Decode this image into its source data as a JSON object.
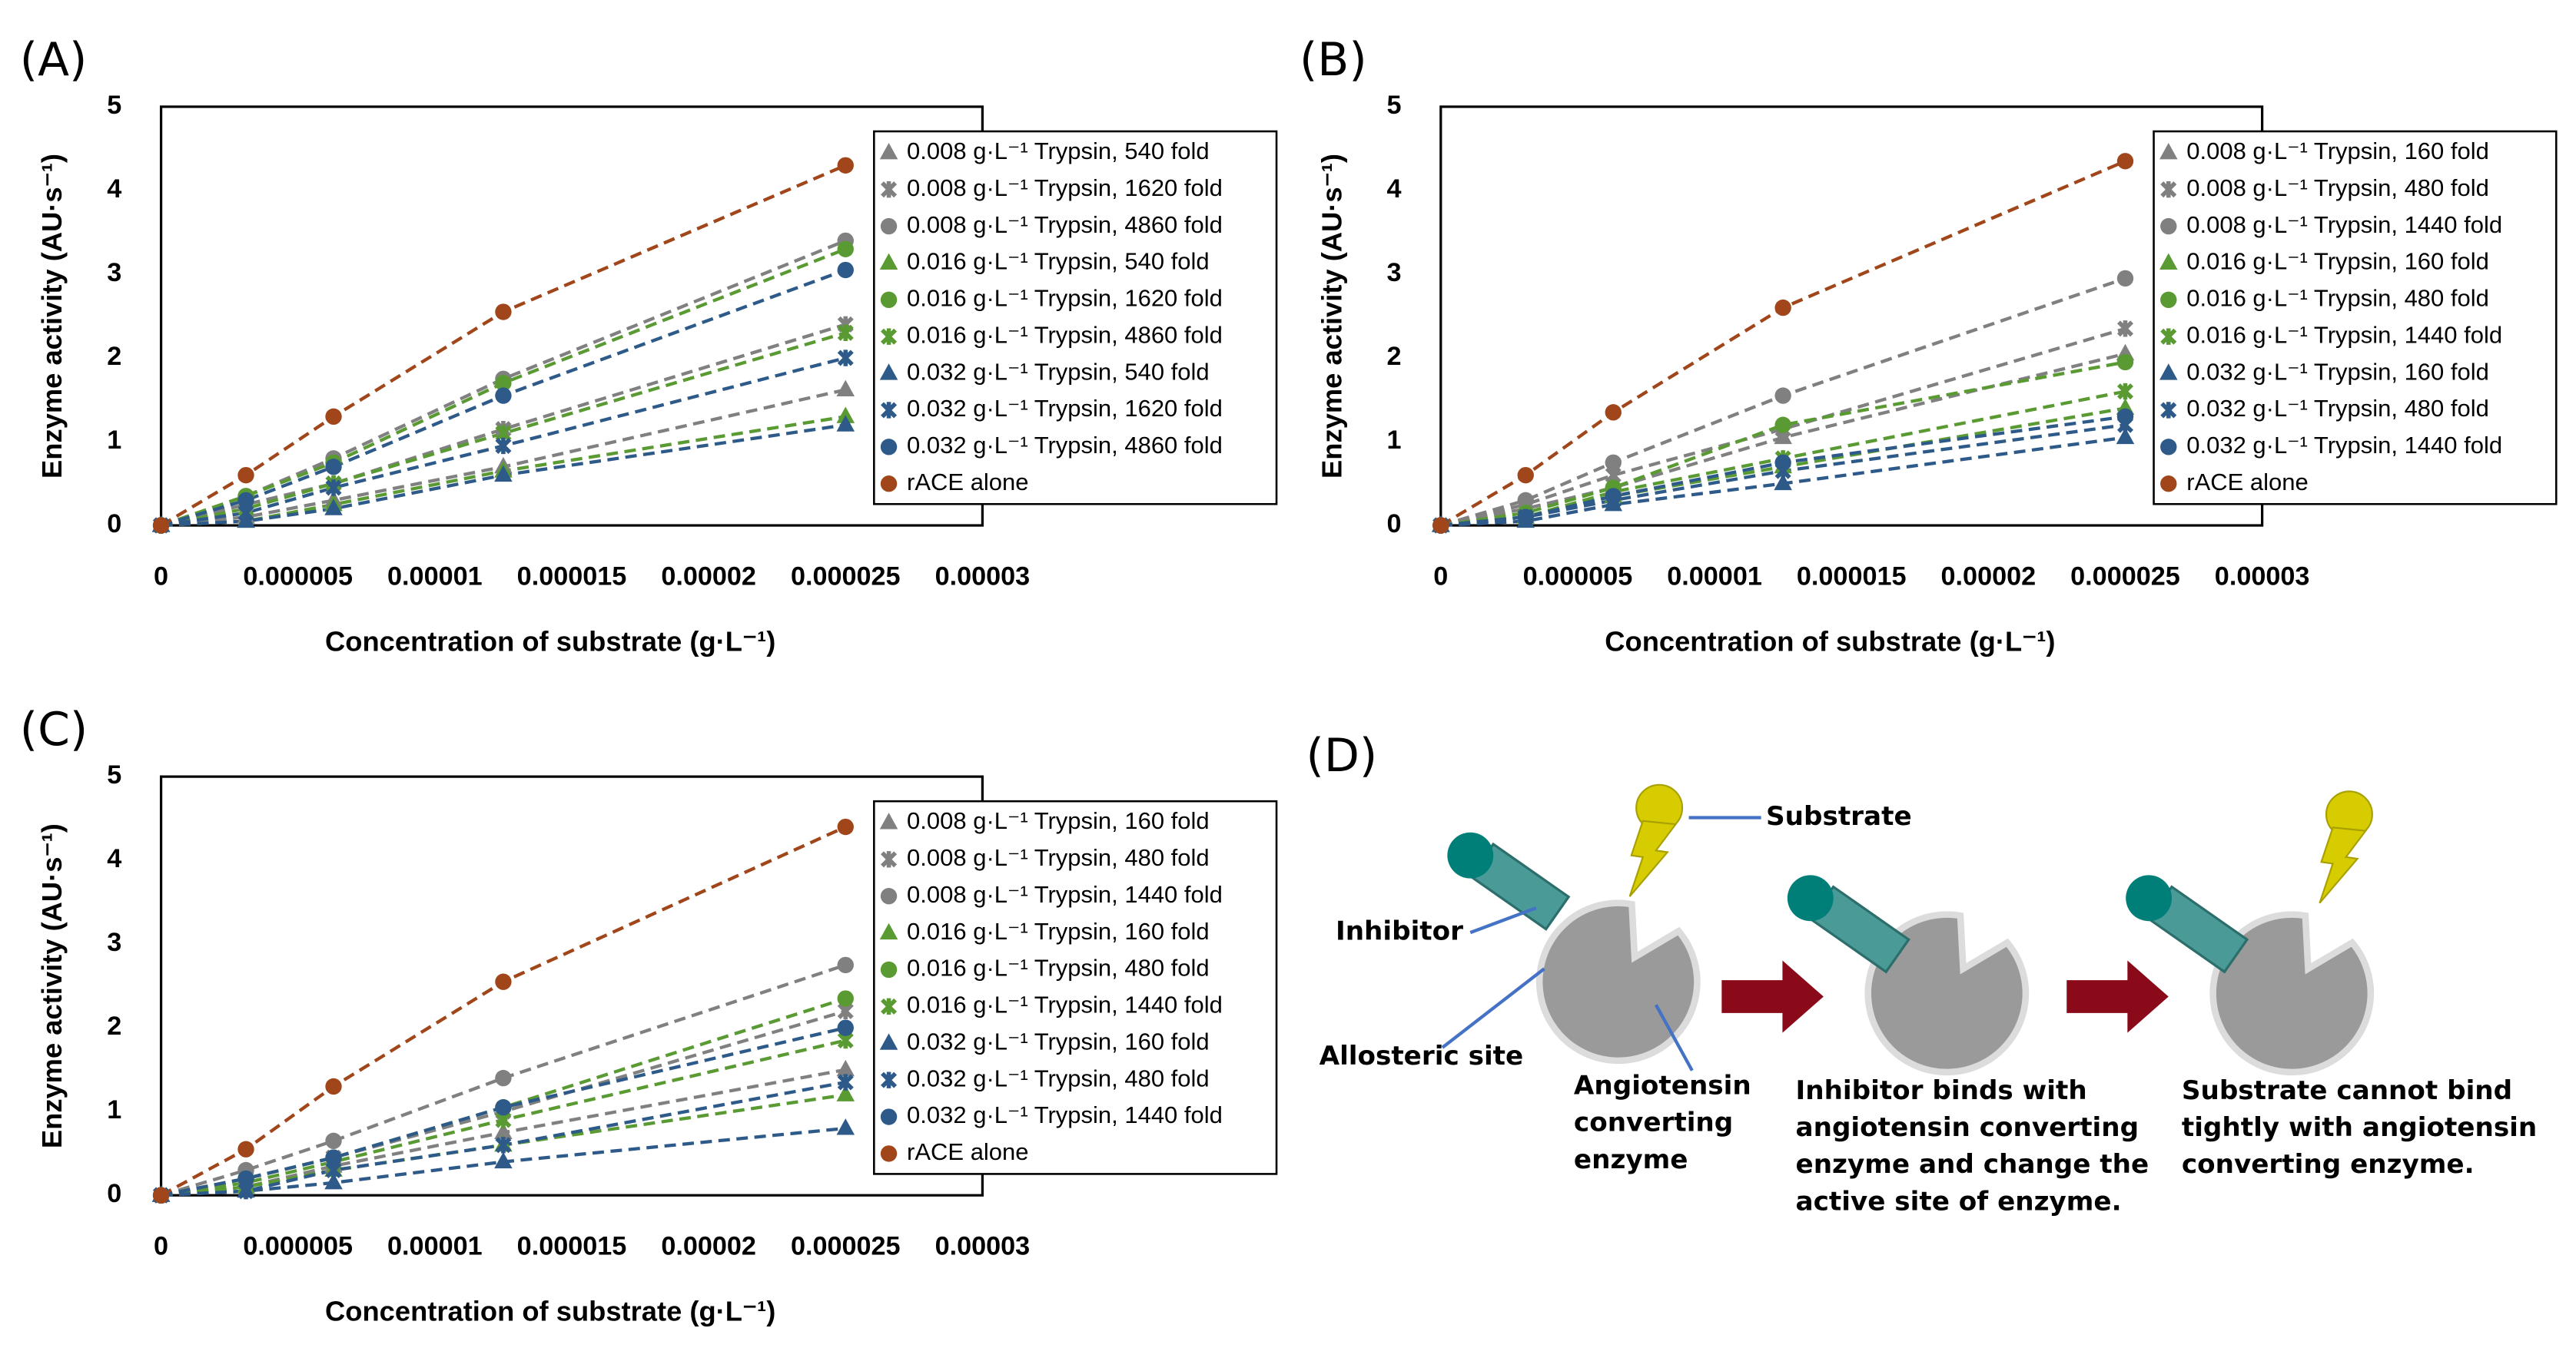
{
  "chart_data": [
    {
      "type": "scatter",
      "panel": "(A)",
      "ylabel": "Enzyme activity (AU·s⁻¹)",
      "xlabel": "Concentration of substrate (g·L⁻¹)",
      "xlim": [
        0,
        3e-05
      ],
      "ylim": [
        0,
        5
      ],
      "xticks": [
        0,
        5e-06,
        1e-05,
        1.5e-05,
        2e-05,
        2.5e-05,
        3e-05
      ],
      "yticks": [
        0,
        1,
        2,
        3,
        4,
        5
      ],
      "x": [
        0,
        3.1e-06,
        6.3e-06,
        1.25e-05,
        2.5e-05
      ],
      "series": [
        {
          "name": "0.008 g·L⁻¹ Trypsin, 540 fold",
          "color": "#808080",
          "marker": "triangle",
          "values": [
            0,
            0.1,
            0.3,
            0.7,
            1.62
          ]
        },
        {
          "name": "0.008 g·L⁻¹ Trypsin, 1620 fold",
          "color": "#808080",
          "marker": "x",
          "values": [
            0,
            0.25,
            0.5,
            1.15,
            2.4
          ]
        },
        {
          "name": "0.008 g·L⁻¹ Trypsin, 4860 fold",
          "color": "#808080",
          "marker": "circle",
          "values": [
            0,
            0.35,
            0.8,
            1.75,
            3.4
          ]
        },
        {
          "name": "0.016 g·L⁻¹ Trypsin, 540 fold",
          "color": "#5a9a32",
          "marker": "triangle",
          "values": [
            0,
            0.05,
            0.25,
            0.65,
            1.3
          ]
        },
        {
          "name": "0.016 g·L⁻¹ Trypsin, 1620 fold",
          "color": "#5a9a32",
          "marker": "circle",
          "values": [
            0,
            0.35,
            0.75,
            1.7,
            3.3
          ]
        },
        {
          "name": "0.016 g·L⁻¹ Trypsin, 4860 fold",
          "color": "#5a9a32",
          "marker": "x",
          "values": [
            0,
            0.2,
            0.5,
            1.1,
            2.3
          ]
        },
        {
          "name": "0.032 g·L⁻¹ Trypsin, 540 fold",
          "color": "#2e5a8a",
          "marker": "triangle",
          "values": [
            0,
            0.05,
            0.2,
            0.6,
            1.2
          ]
        },
        {
          "name": "0.032 g·L⁻¹ Trypsin, 1620 fold",
          "color": "#2e5a8a",
          "marker": "x",
          "values": [
            0,
            0.15,
            0.45,
            0.95,
            2.0
          ]
        },
        {
          "name": "0.032 g·L⁻¹ Trypsin, 4860 fold",
          "color": "#2e5a8a",
          "marker": "circle",
          "values": [
            0,
            0.3,
            0.7,
            1.55,
            3.05
          ]
        },
        {
          "name": "rACE alone",
          "color": "#a0461a",
          "marker": "circle",
          "values": [
            0,
            0.6,
            1.3,
            2.55,
            4.3
          ]
        }
      ]
    },
    {
      "type": "scatter",
      "panel": "(B)",
      "ylabel": "Enzyme activity (AU·s⁻¹)",
      "xlabel": "Concentration of substrate (g·L⁻¹)",
      "xlim": [
        0,
        3e-05
      ],
      "ylim": [
        0,
        5
      ],
      "xticks": [
        0,
        5e-06,
        1e-05,
        1.5e-05,
        2e-05,
        2.5e-05,
        3e-05
      ],
      "yticks": [
        0,
        1,
        2,
        3,
        4,
        5
      ],
      "x": [
        0,
        3.1e-06,
        6.3e-06,
        1.25e-05,
        2.5e-05
      ],
      "series": [
        {
          "name": "0.008 g·L⁻¹ Trypsin, 160 fold",
          "color": "#808080",
          "marker": "triangle",
          "values": [
            0,
            0.2,
            0.45,
            1.05,
            2.05
          ]
        },
        {
          "name": "0.008 g·L⁻¹ Trypsin, 480 fold",
          "color": "#808080",
          "marker": "x",
          "values": [
            0,
            0.25,
            0.6,
            1.15,
            2.35
          ]
        },
        {
          "name": "0.008 g·L⁻¹ Trypsin, 1440 fold",
          "color": "#808080",
          "marker": "circle",
          "values": [
            0,
            0.3,
            0.75,
            1.55,
            2.95
          ]
        },
        {
          "name": "0.016 g·L⁻¹ Trypsin, 160 fold",
          "color": "#5a9a32",
          "marker": "triangle",
          "values": [
            0,
            0.1,
            0.35,
            0.7,
            1.4
          ]
        },
        {
          "name": "0.016 g·L⁻¹ Trypsin, 480 fold",
          "color": "#5a9a32",
          "marker": "circle",
          "values": [
            0,
            0.15,
            0.45,
            1.2,
            1.95
          ]
        },
        {
          "name": "0.016 g·L⁻¹ Trypsin, 1440 fold",
          "color": "#5a9a32",
          "marker": "x",
          "values": [
            0,
            0.1,
            0.4,
            0.8,
            1.6
          ]
        },
        {
          "name": "0.032 g·L⁻¹ Trypsin, 160 fold",
          "color": "#2e5a8a",
          "marker": "triangle",
          "values": [
            0,
            0.05,
            0.25,
            0.5,
            1.05
          ]
        },
        {
          "name": "0.032 g·L⁻¹ Trypsin, 480 fold",
          "color": "#2e5a8a",
          "marker": "x",
          "values": [
            0,
            0.1,
            0.3,
            0.65,
            1.2
          ]
        },
        {
          "name": "0.032 g·L⁻¹ Trypsin, 1440 fold",
          "color": "#2e5a8a",
          "marker": "circle",
          "values": [
            0,
            0.1,
            0.35,
            0.75,
            1.3
          ]
        },
        {
          "name": "rACE alone",
          "color": "#a0461a",
          "marker": "circle",
          "values": [
            0,
            0.6,
            1.35,
            2.6,
            4.35
          ]
        }
      ]
    },
    {
      "type": "scatter",
      "panel": "(C)",
      "ylabel": "Enzyme activity (AU·s⁻¹)",
      "xlabel": "Concentration of substrate (g·L⁻¹)",
      "xlim": [
        0,
        3e-05
      ],
      "ylim": [
        0,
        5
      ],
      "xticks": [
        0,
        5e-06,
        1e-05,
        1.5e-05,
        2e-05,
        2.5e-05,
        3e-05
      ],
      "yticks": [
        0,
        1,
        2,
        3,
        4,
        5
      ],
      "x": [
        0,
        3.1e-06,
        6.3e-06,
        1.25e-05,
        2.5e-05
      ],
      "series": [
        {
          "name": "0.008 g·L⁻¹ Trypsin, 160 fold",
          "color": "#808080",
          "marker": "triangle",
          "values": [
            0,
            0.1,
            0.35,
            0.75,
            1.5
          ]
        },
        {
          "name": "0.008 g·L⁻¹ Trypsin, 480 fold",
          "color": "#808080",
          "marker": "x",
          "values": [
            0,
            0.2,
            0.45,
            1.0,
            2.2
          ]
        },
        {
          "name": "0.008 g·L⁻¹ Trypsin, 1440 fold",
          "color": "#808080",
          "marker": "circle",
          "values": [
            0,
            0.3,
            0.65,
            1.4,
            2.75
          ]
        },
        {
          "name": "0.016 g·L⁻¹ Trypsin, 160 fold",
          "color": "#5a9a32",
          "marker": "triangle",
          "values": [
            0,
            0.1,
            0.3,
            0.6,
            1.2
          ]
        },
        {
          "name": "0.016 g·L⁻¹ Trypsin, 480 fold",
          "color": "#5a9a32",
          "marker": "circle",
          "values": [
            0,
            0.2,
            0.45,
            1.05,
            2.35
          ]
        },
        {
          "name": "0.016 g·L⁻¹ Trypsin, 1440 fold",
          "color": "#5a9a32",
          "marker": "x",
          "values": [
            0,
            0.15,
            0.4,
            0.9,
            1.85
          ]
        },
        {
          "name": "0.032 g·L⁻¹ Trypsin, 160 fold",
          "color": "#2e5a8a",
          "marker": "triangle",
          "values": [
            0,
            0.05,
            0.15,
            0.4,
            0.8
          ]
        },
        {
          "name": "0.032 g·L⁻¹ Trypsin, 480 fold",
          "color": "#2e5a8a",
          "marker": "x",
          "values": [
            0,
            0.05,
            0.3,
            0.6,
            1.35
          ]
        },
        {
          "name": "0.032 g·L⁻¹ Trypsin, 1440 fold",
          "color": "#2e5a8a",
          "marker": "circle",
          "values": [
            0,
            0.2,
            0.45,
            1.05,
            2.0
          ]
        },
        {
          "name": "rACE alone",
          "color": "#a0461a",
          "marker": "circle",
          "values": [
            0,
            0.55,
            1.3,
            2.55,
            4.4
          ]
        }
      ]
    }
  ],
  "diagram": {
    "panel": "(D)",
    "substrate": "Substrate",
    "inhibitor": "Inhibitor",
    "allosteric": "Allosteric site",
    "enzyme": [
      "Angiotensin",
      "converting",
      "enzyme"
    ],
    "step1": [
      "Inhibitor binds with",
      "angiotensin converting",
      "enzyme and change the",
      "active site of enzyme."
    ],
    "step2": [
      "Substrate cannot bind",
      "tightly with angiotensin",
      "converting enzyme."
    ]
  }
}
